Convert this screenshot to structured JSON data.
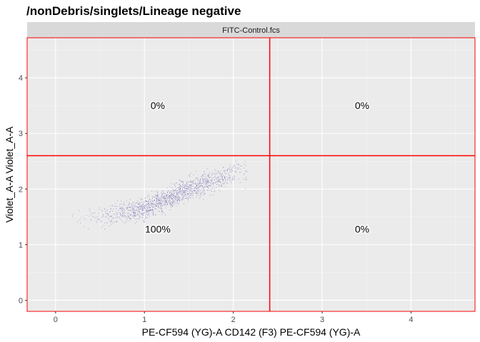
{
  "chart_data": {
    "type": "scatter",
    "title": "/nonDebris/singlets/Lineage negative",
    "facet_label": "FITC-Control.fcs",
    "xlabel": "PE-CF594 (YG)-A CD142 (F3) PE-CF594 (YG)-A",
    "ylabel": "Violet_A-A Violet_A-A",
    "xlim": [
      -0.32,
      4.72
    ],
    "ylim": [
      -0.2,
      4.72
    ],
    "x_ticks": [
      0,
      1,
      2,
      3,
      4
    ],
    "x_tick_labels": [
      "0",
      "1",
      "2",
      "3",
      "4"
    ],
    "y_ticks": [
      0,
      1,
      2,
      3,
      4
    ],
    "y_tick_labels": [
      "0",
      "1",
      "2",
      "3",
      "4"
    ],
    "grid": true,
    "gates": {
      "x_threshold": 2.41,
      "y_threshold": 2.6,
      "color": "#ff0000"
    },
    "quadrant_stats": [
      {
        "x": 1.15,
        "y": 3.5,
        "label": "0%"
      },
      {
        "x": 3.45,
        "y": 3.5,
        "label": "0%"
      },
      {
        "x": 1.15,
        "y": 1.28,
        "label": "100%"
      },
      {
        "x": 3.45,
        "y": 1.28,
        "label": "0%"
      }
    ],
    "point_cloud": {
      "color": "#5b4fa8",
      "count": 1400,
      "x_range": [
        0.1,
        2.15
      ],
      "y_range": [
        1.2,
        2.55
      ],
      "trend": [
        [
          0.3,
          1.45
        ],
        [
          1.0,
          1.65
        ],
        [
          1.5,
          2.0
        ],
        [
          2.0,
          2.3
        ]
      ]
    }
  }
}
